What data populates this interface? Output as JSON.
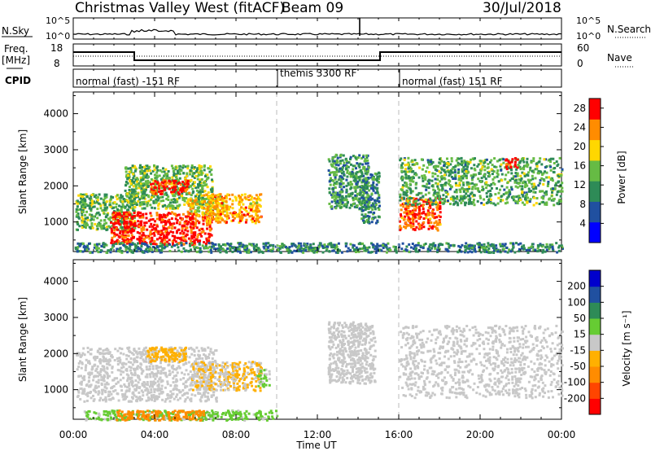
{
  "header": {
    "title": "Christmas Valley West (fitACF)",
    "beam": "Beam 09",
    "date": "30/Jul/2018"
  },
  "nsky_panel": {
    "label": "N.Sky",
    "left_ticks": [
      "10^5",
      "10^0"
    ],
    "right_ticks": [
      "10^5",
      "10^0"
    ],
    "right_label": "N.Search"
  },
  "freq_panel": {
    "label_line1": "Freq.",
    "label_line2": "[MHz]",
    "left_ticks": [
      "18",
      "8"
    ],
    "right_ticks": [
      "60",
      "0"
    ],
    "right_label": "Nave"
  },
  "cpid_panel": {
    "label": "CPID",
    "segments": [
      "normal (fast) -151 RF",
      "themis 3300 RF",
      "normal (fast) 151 RF"
    ]
  },
  "x_axis": {
    "label": "Time UT",
    "ticks": [
      "00:00",
      "04:00",
      "08:00",
      "12:00",
      "16:00",
      "20:00",
      "00:00"
    ]
  },
  "chart_data": [
    {
      "type": "heatmap",
      "title": "",
      "xlabel": "Time UT",
      "ylabel": "Slant Range [km]",
      "x_unit": "hours UT",
      "xlim": [
        0,
        24
      ],
      "ylim": [
        180,
        4600
      ],
      "y_ticks": [
        "1000",
        "2000",
        "3000",
        "4000"
      ],
      "colorbar": {
        "label": "Power [dB]",
        "ticks": [
          "4",
          "8",
          "12",
          "16",
          "20",
          "24",
          "28"
        ],
        "range": [
          0,
          30
        ],
        "colors": [
          "#0000ff",
          "#2050a0",
          "#2e8b57",
          "#66bb44",
          "#ffd700",
          "#ff8c00",
          "#ff0000"
        ]
      },
      "regions": [
        {
          "t0": 0.1,
          "t1": 3.0,
          "r0": 800,
          "r1": 1800,
          "level": 14
        },
        {
          "t0": 1.8,
          "t1": 6.8,
          "r0": 400,
          "r1": 1300,
          "level": 28
        },
        {
          "t0": 2.5,
          "t1": 6.8,
          "r0": 1400,
          "r1": 2600,
          "level": 14
        },
        {
          "t0": 3.7,
          "t1": 5.7,
          "r0": 1800,
          "r1": 2200,
          "level": 28
        },
        {
          "t0": 5.5,
          "t1": 7.5,
          "r0": 1200,
          "r1": 1700,
          "level": 18
        },
        {
          "t0": 6.3,
          "t1": 9.2,
          "r0": 1000,
          "r1": 1800,
          "level": 22
        },
        {
          "t0": 12.5,
          "t1": 14.5,
          "r0": 1400,
          "r1": 2900,
          "level": 12
        },
        {
          "t0": 14.0,
          "t1": 15.0,
          "r0": 1000,
          "r1": 2400,
          "level": 10
        },
        {
          "t0": 16.0,
          "t1": 18.0,
          "r0": 800,
          "r1": 1700,
          "level": 26
        },
        {
          "t0": 16.0,
          "t1": 24.0,
          "r0": 1500,
          "r1": 2800,
          "level": 13
        },
        {
          "t0": 21.2,
          "t1": 21.8,
          "r0": 2500,
          "r1": 2800,
          "level": 28
        },
        {
          "t0": 0.0,
          "t1": 24.0,
          "r0": 180,
          "r1": 450,
          "level": 10
        }
      ]
    },
    {
      "type": "heatmap",
      "title": "",
      "xlabel": "Time UT",
      "ylabel": "Slant Range [km]",
      "x_unit": "hours UT",
      "xlim": [
        0,
        24
      ],
      "ylim": [
        180,
        4600
      ],
      "y_ticks": [
        "1000",
        "2000",
        "3000",
        "4000"
      ],
      "colorbar": {
        "label": "Velocity [m s⁻¹]",
        "ticks": [
          "200",
          "100",
          "50",
          "15",
          "-15",
          "-50",
          "-100",
          "-200"
        ],
        "range": [
          -250,
          250
        ],
        "colors": [
          "#ff0000",
          "#ff4500",
          "#ff8c00",
          "#ffb000",
          "#c8c8c8",
          "#66cc33",
          "#2e8b57",
          "#2050a0",
          "#0000cd"
        ]
      },
      "regions": [
        {
          "t0": 0.1,
          "t1": 7.0,
          "r0": 700,
          "r1": 2200,
          "level": 0
        },
        {
          "t0": 3.5,
          "t1": 5.5,
          "r0": 1800,
          "r1": 2200,
          "level": -60
        },
        {
          "t0": 5.8,
          "t1": 9.2,
          "r0": 1000,
          "r1": 1800,
          "level": -30
        },
        {
          "t0": 9.0,
          "t1": 9.6,
          "r0": 1100,
          "r1": 1600,
          "level": 30
        },
        {
          "t0": 12.5,
          "t1": 14.8,
          "r0": 1200,
          "r1": 2900,
          "level": 0
        },
        {
          "t0": 16.0,
          "t1": 24.0,
          "r0": 800,
          "r1": 2800,
          "level": 0
        },
        {
          "t0": 0.5,
          "t1": 10.0,
          "r0": 180,
          "r1": 450,
          "level": 40
        },
        {
          "t0": 2.0,
          "t1": 6.5,
          "r0": 180,
          "r1": 450,
          "level": -120
        }
      ]
    }
  ]
}
